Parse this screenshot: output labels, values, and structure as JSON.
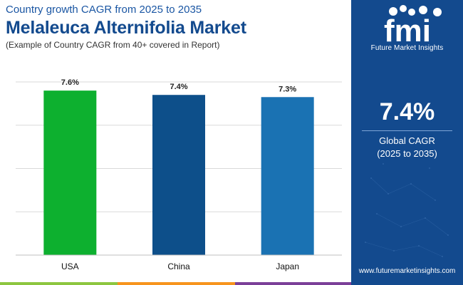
{
  "header": {
    "kicker": "Country growth CAGR from 2025 to 2035",
    "title": "Melaleuca Alternifolia Market",
    "note": "(Example of Country CAGR from 40+ covered in Report)"
  },
  "chart_data": {
    "type": "bar",
    "categories": [
      "USA",
      "China",
      "Japan"
    ],
    "values": [
      7.6,
      7.4,
      7.3
    ],
    "value_labels": [
      "7.6%",
      "7.4%",
      "7.3%"
    ],
    "colors": [
      "#0db02f",
      "#0d4f8a",
      "#1a72b3"
    ],
    "ylim": [
      0,
      8
    ],
    "grid": true,
    "legend": "none"
  },
  "panel": {
    "logo_text": "fmi",
    "logo_caption": "Future Market Insights",
    "highlight_value": "7.4%",
    "highlight_label_1": "Global CAGR",
    "highlight_label_2": "(2025 to 2035)",
    "website": "www.futuremarketinsights.com"
  },
  "colors": {
    "title": "#134a8e",
    "panel_bg": "#134a8e",
    "footer_green": "#8dc63f",
    "footer_orange": "#f7941d",
    "footer_purple": "#7b3f98",
    "footer_blue": "#134a8e"
  }
}
